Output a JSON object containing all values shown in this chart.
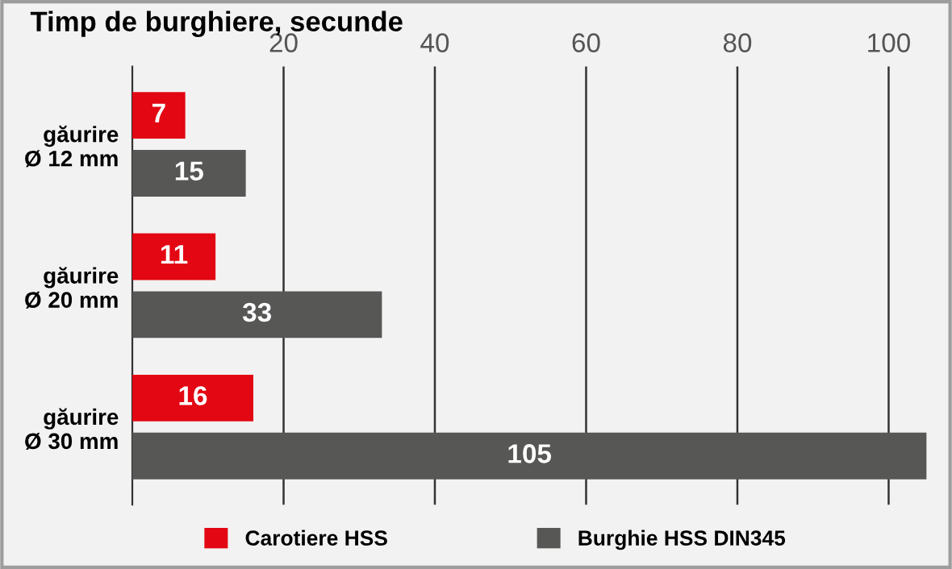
{
  "chart_data": {
    "type": "bar",
    "orientation": "horizontal",
    "title": "Timp de burghiere, secunde",
    "categories": [
      "găurire\nØ 12 mm",
      "găurire\nØ 20 mm",
      "găurire\nØ 30 mm"
    ],
    "series": [
      {
        "name": "Carotiere HSS",
        "color": "#e30613",
        "values": [
          7,
          11,
          16
        ]
      },
      {
        "name": "Burghie HSS DIN345",
        "color": "#575756",
        "values": [
          15,
          33,
          105
        ]
      }
    ],
    "xlim": [
      0,
      108
    ],
    "xticks": [
      20,
      40,
      60,
      80,
      100
    ],
    "grid": "x",
    "data_labels": true,
    "legend": "bottom"
  }
}
